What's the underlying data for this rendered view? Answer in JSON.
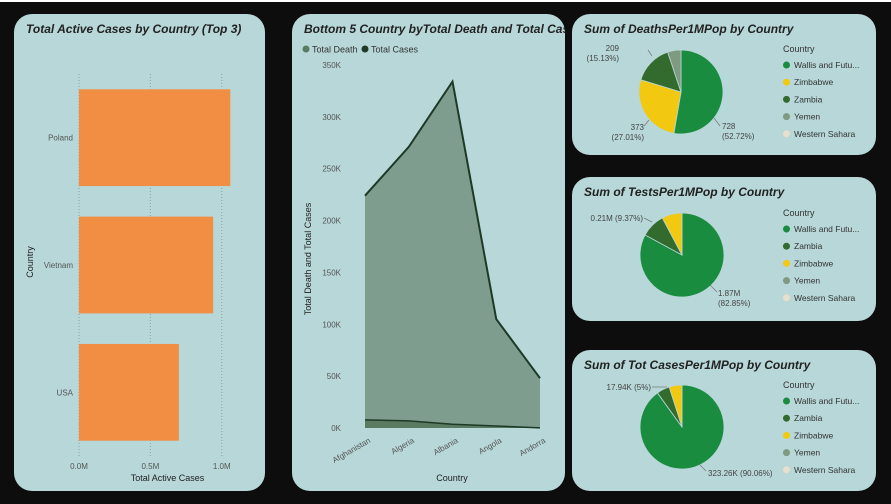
{
  "colors": {
    "background": "#0d0d0d",
    "card": "#b7d7d8",
    "bar": "#f28e43",
    "area_cases": "#7a9a8a",
    "line_cases": "#1e3a26",
    "area_deaths": "#5b7a62",
    "pie_green": "#1a8c40",
    "pie_yellow": "#f2c811",
    "pie_darkgreen": "#336b2e",
    "pie_gray": "#7f9a80",
    "pie_light": "#e8e0cc"
  },
  "chart_data": [
    {
      "type": "bar",
      "orientation": "horizontal",
      "title": "Total Active Cases by Country (Top 3)",
      "xlabel": "Total Active Cases",
      "ylabel": "Country",
      "categories": [
        "Poland",
        "Vietnam",
        "USA"
      ],
      "values": [
        1060000,
        940000,
        700000
      ],
      "xlim": [
        0,
        1100000
      ],
      "xticks": [
        0,
        500000,
        1000000
      ],
      "xtick_labels": [
        "0.0M",
        "0.5M",
        "1.0M"
      ],
      "grid": "vertical dotted"
    },
    {
      "type": "area",
      "title": "Bottom 5 Country byTotal Death and Total Cases",
      "xlabel": "Country",
      "ylabel": "Total Death and Total Cases",
      "categories": [
        "Afghanistan",
        "Algeria",
        "Albania",
        "Angola",
        "Andorra"
      ],
      "series": [
        {
          "name": "Total Death",
          "values": [
            7800,
            6900,
            3600,
            1900,
            170
          ]
        },
        {
          "name": "Total Cases",
          "values": [
            224000,
            271000,
            334000,
            105000,
            48000
          ]
        }
      ],
      "ylim": [
        0,
        350000
      ],
      "yticks": [
        0,
        50000,
        100000,
        150000,
        200000,
        250000,
        300000,
        350000
      ],
      "ytick_labels": [
        "0K",
        "50K",
        "100K",
        "150K",
        "200K",
        "250K",
        "300K",
        "350K"
      ],
      "legend": "top-left"
    },
    {
      "type": "pie",
      "title": "Sum of DeathsPer1MPop by Country",
      "legend_title": "Country",
      "legend": "right",
      "slices": [
        {
          "label": "Wallis and Futu...",
          "value": 728,
          "percent": 52.72,
          "text": "728",
          "pct_text": "(52.72%)"
        },
        {
          "label": "Zimbabwe",
          "value": 373,
          "percent": 27.01,
          "text": "373",
          "pct_text": "(27.01%)"
        },
        {
          "label": "Zambia",
          "value": 209,
          "percent": 15.13,
          "text": "209",
          "pct_text": "(15.13%)"
        },
        {
          "label": "Yemen",
          "value": 71,
          "percent": 5.14
        },
        {
          "label": "Western Sahara",
          "value": 0,
          "percent": 0
        }
      ]
    },
    {
      "type": "pie",
      "title": "Sum of TestsPer1MPop by Country",
      "legend_title": "Country",
      "legend": "right",
      "slices": [
        {
          "label": "Wallis and Futu...",
          "value": 1870000,
          "percent": 82.85,
          "text": "1.87M",
          "pct_text": "(82.85%)"
        },
        {
          "label": "Zambia",
          "value": 210000,
          "percent": 9.37,
          "text": "0.21M (9.37%)",
          "pct_text": ""
        },
        {
          "label": "Zimbabwe",
          "value": 175000,
          "percent": 7.78
        },
        {
          "label": "Yemen",
          "value": 0,
          "percent": 0
        },
        {
          "label": "Western Sahara",
          "value": 0,
          "percent": 0
        }
      ]
    },
    {
      "type": "pie",
      "title": "Sum of Tot CasesPer1MPop by Country",
      "legend_title": "Country",
      "legend": "right",
      "slices": [
        {
          "label": "Wallis and Futu...",
          "value": 323260,
          "percent": 90.06,
          "text": "323.26K (90.06%)",
          "pct_text": ""
        },
        {
          "label": "Zambia",
          "value": 17940,
          "percent": 5.0,
          "text": "17.94K (5%)",
          "pct_text": ""
        },
        {
          "label": "Zimbabwe",
          "value": 17700,
          "percent": 4.93
        },
        {
          "label": "Yemen",
          "value": 0,
          "percent": 0
        },
        {
          "label": "Western Sahara",
          "value": 0,
          "percent": 0
        }
      ]
    }
  ]
}
